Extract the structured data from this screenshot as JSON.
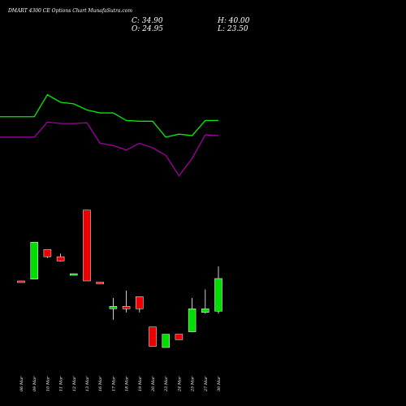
{
  "header": {
    "title": "DMART 4300  CE Options  Chart MunafaSutra.com",
    "close": "C: 34.90",
    "open": "O: 24.95",
    "high": "H: 40.00",
    "low": "L: 23.50"
  },
  "chart_data": {
    "type": "candlestick",
    "title": "DMART 4300  CE Options  Chart MunafaSutra.com",
    "categories": [
      "06 Mar",
      "09 Mar",
      "10 Mar",
      "11 Mar",
      "12 Mar",
      "13 Mar",
      "16 Mar",
      "17 Mar",
      "18 Mar",
      "19 Mar",
      "20 Mar",
      "23 Mar",
      "24 Mar",
      "25 Mar",
      "27 Mar",
      "30 Mar"
    ],
    "candles": [
      {
        "date": "06 Mar",
        "open": 62.0,
        "high": 62.0,
        "low": 61.2,
        "close": 61.2
      },
      {
        "date": "09 Mar",
        "open": 63.5,
        "high": 94.0,
        "low": 63.5,
        "close": 94.0
      },
      {
        "date": "10 Mar",
        "open": 88.0,
        "high": 88.0,
        "low": 81.0,
        "close": 82.0
      },
      {
        "date": "11 Mar",
        "open": 82.0,
        "high": 84.5,
        "low": 78.0,
        "close": 78.5
      },
      {
        "date": "12 Mar",
        "open": 67.5,
        "high": 68.0,
        "low": 67.0,
        "close": 68.0
      },
      {
        "date": "13 Mar",
        "open": 120.5,
        "high": 120.5,
        "low": 62.0,
        "close": 62.0
      },
      {
        "date": "16 Mar",
        "open": 61.0,
        "high": 61.0,
        "low": 60.0,
        "close": 60.5
      },
      {
        "date": "17 Mar",
        "open": 39.0,
        "high": 48.0,
        "low": 30.0,
        "close": 41.0
      },
      {
        "date": "18 Mar",
        "open": 41.0,
        "high": 54.0,
        "low": 36.0,
        "close": 39.0
      },
      {
        "date": "19 Mar",
        "open": 49.0,
        "high": 49.0,
        "low": 36.0,
        "close": 39.0
      },
      {
        "date": "20 Mar",
        "open": 24.0,
        "high": 24.0,
        "low": 8.0,
        "close": 8.0
      },
      {
        "date": "23 Mar",
        "open": 7.0,
        "high": 18.0,
        "low": 7.0,
        "close": 18.0
      },
      {
        "date": "24 Mar",
        "open": 18.0,
        "high": 18.0,
        "low": 13.5,
        "close": 13.5
      },
      {
        "date": "25 Mar",
        "open": 20.0,
        "high": 48.0,
        "low": 20.0,
        "close": 39.0
      },
      {
        "date": "27 Mar",
        "open": 36.0,
        "high": 55.0,
        "low": 35.0,
        "close": 39.0
      },
      {
        "date": "30 Mar",
        "open": 37.0,
        "high": 74.0,
        "low": 35.0,
        "close": 64.0
      }
    ],
    "series": [
      {
        "color": "#00ee00",
        "values": [
          131,
          131,
          160,
          150,
          148,
          140,
          136,
          136,
          126,
          125,
          125,
          104,
          108,
          106,
          126,
          126
        ]
      },
      {
        "color": "#a000a0",
        "values": [
          104,
          104,
          124,
          122,
          122,
          123,
          96,
          93,
          87,
          96,
          90,
          80,
          53,
          76,
          107,
          106
        ]
      }
    ],
    "ylim": [
      0,
      180
    ],
    "up_color": "#00dd00",
    "down_color": "#ee0000",
    "background": "#000000"
  }
}
